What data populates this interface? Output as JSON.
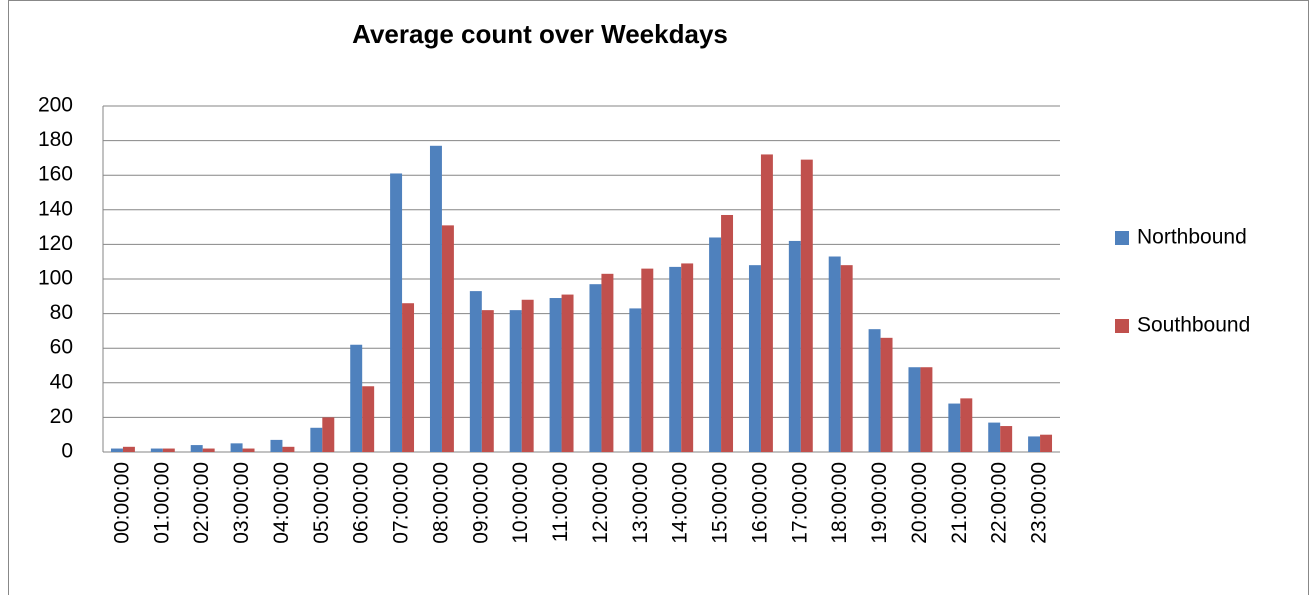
{
  "chart_data": {
    "type": "bar",
    "title": "Average count over Weekdays",
    "categories": [
      "00:00:00",
      "01:00:00",
      "02:00:00",
      "03:00:00",
      "04:00:00",
      "05:00:00",
      "06:00:00",
      "07:00:00",
      "08:00:00",
      "09:00:00",
      "10:00:00",
      "11:00:00",
      "12:00:00",
      "13:00:00",
      "14:00:00",
      "15:00:00",
      "16:00:00",
      "17:00:00",
      "18:00:00",
      "19:00:00",
      "20:00:00",
      "21:00:00",
      "22:00:00",
      "23:00:00"
    ],
    "series": [
      {
        "name": "Northbound",
        "color": "#4f81bd",
        "values": [
          2,
          2,
          4,
          5,
          7,
          14,
          62,
          161,
          177,
          93,
          82,
          89,
          97,
          83,
          107,
          124,
          108,
          122,
          113,
          71,
          49,
          28,
          17,
          9
        ]
      },
      {
        "name": "Southbound",
        "color": "#c0504d",
        "values": [
          3,
          2,
          2,
          2,
          3,
          20,
          38,
          86,
          131,
          82,
          88,
          91,
          103,
          106,
          109,
          137,
          172,
          169,
          108,
          66,
          49,
          31,
          15,
          10
        ]
      }
    ],
    "ylim": [
      0,
      200
    ],
    "yticks": [
      0,
      20,
      40,
      60,
      80,
      100,
      120,
      140,
      160,
      180,
      200
    ],
    "grid": true,
    "legend": "right"
  }
}
